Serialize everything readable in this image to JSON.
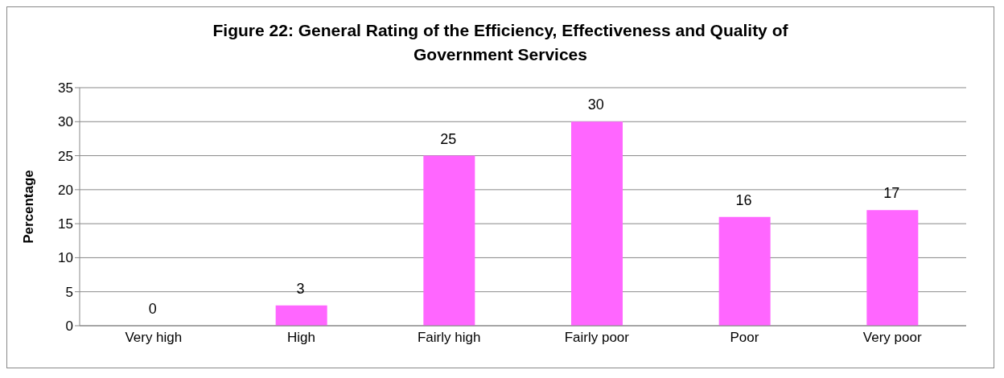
{
  "chart_data": {
    "type": "bar",
    "title": "Figure 22: General Rating of the Efficiency, Effectiveness and Quality of Government Services",
    "ylabel": "Percentage",
    "categories": [
      "Very high",
      "High",
      "Fairly high",
      "Fairly poor",
      "Poor",
      "Very poor"
    ],
    "values": [
      0,
      3,
      25,
      30,
      16,
      17
    ],
    "color": "#ff66ff",
    "ylim": [
      0,
      35
    ],
    "yticks": [
      0,
      5,
      10,
      15,
      20,
      25,
      30,
      35
    ],
    "grid": "y",
    "data_labels": true
  }
}
